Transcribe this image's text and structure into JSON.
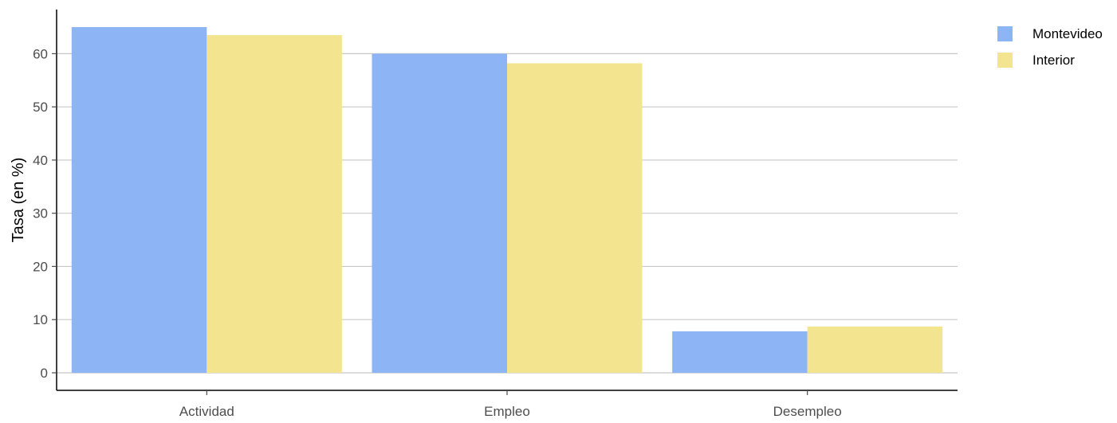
{
  "chart_data": {
    "type": "bar",
    "categories": [
      "Actividad",
      "Empleo",
      "Desempleo"
    ],
    "series": [
      {
        "name": "Montevideo",
        "values": [
          65.0,
          60.0,
          7.8
        ],
        "color": "#8db4f4"
      },
      {
        "name": "Interior",
        "values": [
          63.5,
          58.2,
          8.7
        ],
        "color": "#f3e58f"
      }
    ],
    "title": "",
    "xlabel": "",
    "ylabel": "Tasa (en %)",
    "ylim": [
      -3.3,
      68.3
    ],
    "yticks": [
      0,
      10,
      20,
      30,
      40,
      50,
      60
    ],
    "grid": "horizontal",
    "legend_position": "top-right"
  }
}
